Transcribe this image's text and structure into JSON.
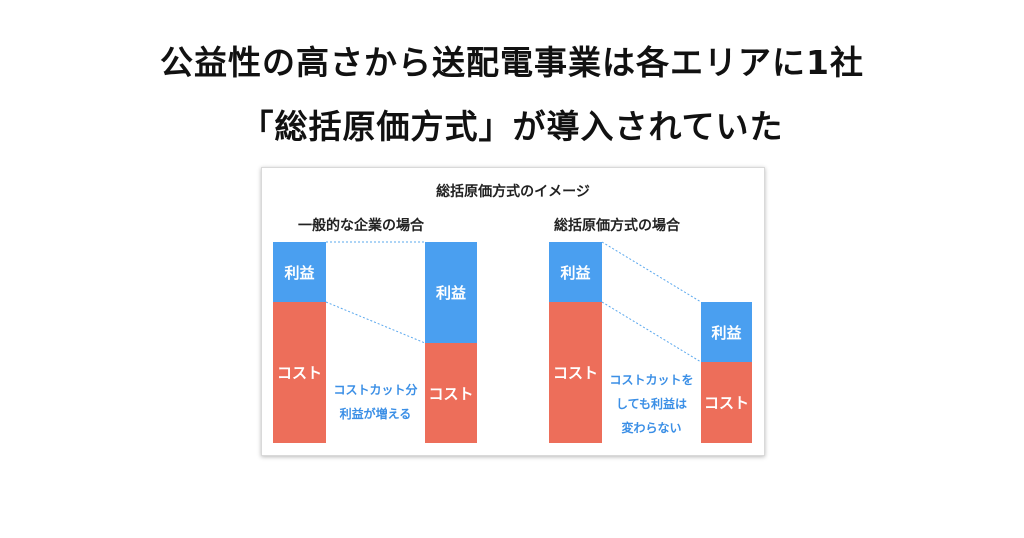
{
  "headline": {
    "line1": "公益性の高さから送配電事業は各エリアに1社",
    "line2": "「総括原価方式」が導入されていた"
  },
  "diagram": {
    "title": "総括原価方式のイメージ",
    "left": {
      "title": "一般的な企業の場合",
      "bar1": {
        "profit_label": "利益",
        "cost_label": "コスト"
      },
      "bar2": {
        "profit_label": "利益",
        "cost_label": "コスト"
      },
      "note_line1": "コストカット分",
      "note_line2": "利益が増える"
    },
    "right": {
      "title": "総括原価方式の場合",
      "bar1": {
        "profit_label": "利益",
        "cost_label": "コスト"
      },
      "bar2": {
        "profit_label": "利益",
        "cost_label": "コスト"
      },
      "note_line1": "コストカットを",
      "note_line2": "しても利益は",
      "note_line3": "変わらない"
    },
    "colors": {
      "profit": "#4a9ff0",
      "cost": "#ed6e5a",
      "note": "#3b8fe6"
    }
  }
}
